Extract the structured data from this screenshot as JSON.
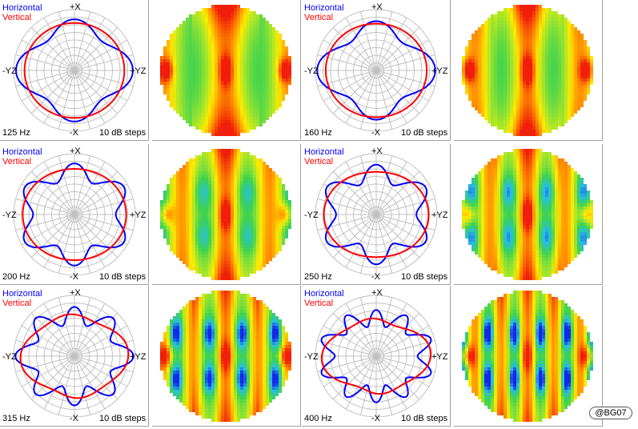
{
  "legend": {
    "horizontal": "Horizontal",
    "vertical": "Vertical"
  },
  "axes": {
    "top": "+X",
    "bottom": "-X",
    "left": "-YZ",
    "right": "+YZ"
  },
  "steps_label": "10 dB steps",
  "credit": "@BG07",
  "colors": {
    "horizontal": "#0000ff",
    "vertical": "#ff0000",
    "grid": "#c0c0c0"
  },
  "chart_data": [
    {
      "type": "polar",
      "frequency": "125 Hz",
      "step_db": 10,
      "series": [
        {
          "name": "Horizontal",
          "color": "#0000ff",
          "lobes": 4,
          "base": 0.78,
          "amp": 0.12,
          "phase": 0,
          "squash": 0.06
        },
        {
          "name": "Vertical",
          "color": "#ff0000",
          "lobes": 0,
          "base": 0.8,
          "amp": 0.0,
          "phase": 0,
          "squash": 0.02
        }
      ],
      "map": {
        "stripes": 2,
        "center_hot": 1.0,
        "side_hot": 0.95,
        "blue": 0.0
      }
    },
    {
      "type": "polar",
      "frequency": "160 Hz",
      "step_db": 10,
      "series": [
        {
          "name": "Horizontal",
          "color": "#0000ff",
          "lobes": 4,
          "base": 0.76,
          "amp": 0.13,
          "phase": 0,
          "squash": 0.08
        },
        {
          "name": "Vertical",
          "color": "#ff0000",
          "lobes": 0,
          "base": 0.8,
          "amp": 0.0,
          "phase": 0,
          "squash": 0.03
        }
      ],
      "map": {
        "stripes": 2.5,
        "center_hot": 1.0,
        "side_hot": 1.0,
        "blue": 0.0
      }
    },
    {
      "type": "polar",
      "frequency": "200 Hz",
      "step_db": 10,
      "series": [
        {
          "name": "Horizontal",
          "color": "#0000ff",
          "lobes": 6,
          "base": 0.76,
          "amp": 0.14,
          "phase": 0,
          "squash": 0.06
        },
        {
          "name": "Vertical",
          "color": "#ff0000",
          "lobes": 0,
          "base": 0.8,
          "amp": 0.0,
          "phase": 0,
          "squash": 0.05
        }
      ],
      "map": {
        "stripes": 3,
        "center_hot": 0.95,
        "side_hot": 0.95,
        "blue": 0.35
      }
    },
    {
      "type": "polar",
      "frequency": "250 Hz",
      "step_db": 10,
      "series": [
        {
          "name": "Horizontal",
          "color": "#0000ff",
          "lobes": 6,
          "base": 0.74,
          "amp": 0.15,
          "phase": 0,
          "squash": 0.07
        },
        {
          "name": "Vertical",
          "color": "#ff0000",
          "lobes": 0,
          "base": 0.78,
          "amp": 0.0,
          "phase": 0,
          "squash": 0.08
        }
      ],
      "map": {
        "stripes": 3.5,
        "center_hot": 1.0,
        "side_hot": 1.0,
        "blue": 0.55
      }
    },
    {
      "type": "polar",
      "frequency": "315 Hz",
      "step_db": 10,
      "series": [
        {
          "name": "Horizontal",
          "color": "#0000ff",
          "lobes": 8,
          "base": 0.74,
          "amp": 0.15,
          "phase": 0,
          "squash": 0.08
        },
        {
          "name": "Vertical",
          "color": "#ff0000",
          "lobes": 4,
          "base": 0.74,
          "amp": 0.05,
          "phase": 0.4,
          "squash": 0.1
        }
      ],
      "map": {
        "stripes": 4,
        "center_hot": 0.85,
        "side_hot": 0.95,
        "blue": 0.85
      }
    },
    {
      "type": "polar",
      "frequency": "400 Hz",
      "step_db": 10,
      "series": [
        {
          "name": "Horizontal",
          "color": "#0000ff",
          "lobes": 10,
          "base": 0.72,
          "amp": 0.14,
          "phase": 0,
          "squash": 0.1
        },
        {
          "name": "Vertical",
          "color": "#ff0000",
          "lobes": 4,
          "base": 0.7,
          "amp": 0.06,
          "phase": 0.4,
          "squash": 0.14
        }
      ],
      "map": {
        "stripes": 5,
        "center_hot": 0.75,
        "side_hot": 0.9,
        "blue": 1.0
      }
    }
  ]
}
